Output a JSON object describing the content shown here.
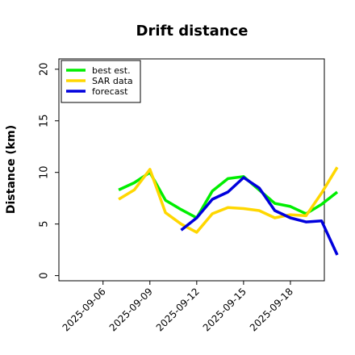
{
  "chart_data": {
    "type": "line",
    "title": "Drift distance",
    "ylabel": "Distance (km)",
    "xlabel": "",
    "ylim": [
      -0.5,
      21
    ],
    "yticks": [
      0,
      5,
      10,
      15,
      20
    ],
    "xlim": [
      "2025-09-04",
      "2025-09-21"
    ],
    "xticks": [
      "2025-09-06",
      "2025-09-09",
      "2025-09-12",
      "2025-09-15",
      "2025-09-18"
    ],
    "legend": "top-left",
    "grid": false,
    "series": [
      {
        "name": "best est.",
        "color": "#00ee00",
        "points": [
          [
            "2025-09-07",
            8.3
          ],
          [
            "2025-09-08",
            9.0
          ],
          [
            "2025-09-09",
            10.0
          ],
          [
            "2025-09-10",
            7.3
          ],
          [
            "2025-09-11",
            6.4
          ],
          [
            "2025-09-12",
            5.6
          ],
          [
            "2025-09-13",
            8.2
          ],
          [
            "2025-09-14",
            9.4
          ],
          [
            "2025-09-15",
            9.6
          ],
          [
            "2025-09-16",
            8.3
          ],
          [
            "2025-09-17",
            7.0
          ],
          [
            "2025-09-18",
            6.7
          ],
          [
            "2025-09-19",
            6.0
          ],
          [
            "2025-09-20",
            6.9
          ],
          [
            "2025-09-21",
            8.1
          ]
        ]
      },
      {
        "name": "SAR data",
        "color": "#ffd700",
        "points": [
          [
            "2025-09-07",
            7.4
          ],
          [
            "2025-09-08",
            8.3
          ],
          [
            "2025-09-09",
            10.3
          ],
          [
            "2025-09-10",
            6.1
          ],
          [
            "2025-09-11",
            5.0
          ],
          [
            "2025-09-12",
            4.2
          ],
          [
            "2025-09-13",
            6.0
          ],
          [
            "2025-09-14",
            6.6
          ],
          [
            "2025-09-15",
            6.5
          ],
          [
            "2025-09-16",
            6.3
          ],
          [
            "2025-09-17",
            5.6
          ],
          [
            "2025-09-18",
            5.9
          ],
          [
            "2025-09-19",
            5.8
          ],
          [
            "2025-09-20",
            8.0
          ],
          [
            "2025-09-21",
            10.5
          ]
        ]
      },
      {
        "name": "forecast",
        "color": "#0000dd",
        "points": [
          [
            "2025-09-11",
            4.4
          ],
          [
            "2025-09-12",
            5.6
          ],
          [
            "2025-09-13",
            7.4
          ],
          [
            "2025-09-14",
            8.1
          ],
          [
            "2025-09-15",
            9.5
          ],
          [
            "2025-09-16",
            8.5
          ],
          [
            "2025-09-17",
            6.3
          ],
          [
            "2025-09-18",
            5.6
          ],
          [
            "2025-09-19",
            5.2
          ],
          [
            "2025-09-20",
            5.3
          ],
          [
            "2025-09-21",
            2.0
          ]
        ]
      }
    ]
  }
}
